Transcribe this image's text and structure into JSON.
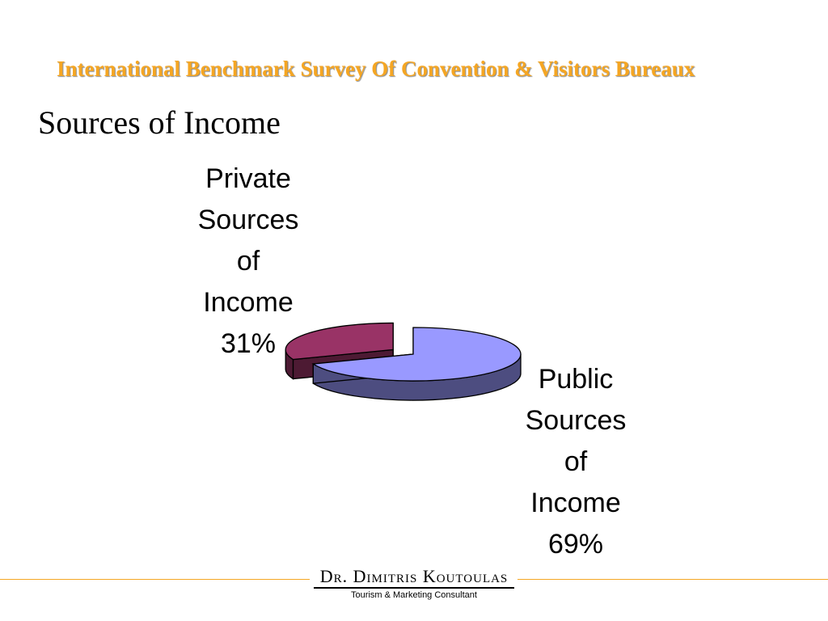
{
  "header": {
    "title": "International Benchmark Survey Of Convention & Visitors Bureaux"
  },
  "slide": {
    "title": "Sources of Income"
  },
  "chart_data": {
    "type": "pie",
    "style": "3d-exploded",
    "title": "",
    "slices": [
      {
        "label_lines": [
          "Private",
          "Sources",
          "of",
          "Income",
          "31%"
        ],
        "name": "Private Sources of Income",
        "value": 31,
        "top_color": "#993366",
        "side_color": "#4d1a33"
      },
      {
        "label_lines": [
          "Public",
          "Sources",
          "of",
          "Income",
          "69%"
        ],
        "name": "Public Sources of Income",
        "value": 69,
        "top_color": "#9999ff",
        "side_color": "#4d4d80"
      }
    ],
    "legend": "none",
    "data_labels": "category name and percentage"
  },
  "footer": {
    "name": "Dr. Dimitris Koutoulas",
    "tagline": "Tourism & Marketing Consultant",
    "rule_color": "#f5a623"
  }
}
